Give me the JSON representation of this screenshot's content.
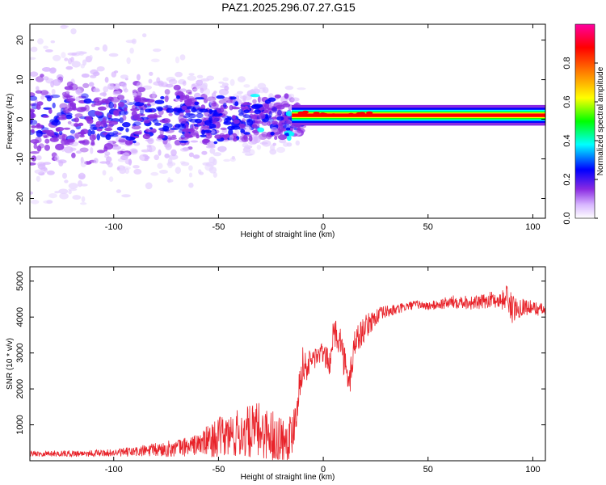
{
  "title": "PAZ1.2025.296.07.27.G15",
  "chart_data": [
    {
      "type": "heatmap",
      "title": "PAZ1.2025.296.07.27.G15",
      "xlabel": "Height of straight line (km)",
      "ylabel": "Frequency (Hz)",
      "xlim": [
        -140,
        106
      ],
      "ylim": [
        -25,
        24
      ],
      "x_ticks": [
        -100,
        -50,
        0,
        50,
        100
      ],
      "y_ticks": [
        -20,
        -10,
        0,
        10,
        20
      ],
      "colorbar": {
        "label": "Normalized spectral amplitude",
        "range": [
          0.0,
          1.0
        ],
        "ticks": [
          0.0,
          0.2,
          0.4,
          0.6,
          0.8
        ],
        "tick_labels": [
          "0.0",
          "0.2",
          "0.4",
          "0.6",
          "0.8"
        ],
        "colors": [
          "#ffffff",
          "#d8b6ff",
          "#8a2be2",
          "#0000ff",
          "#00ffff",
          "#00ff00",
          "#ffff00",
          "#ff8000",
          "#ff0000",
          "#ff00a0"
        ]
      },
      "features": {
        "carrier_frequency_hz": 1.0,
        "carrier_band_start_km": -15,
        "diffuse_region_km": [
          -140,
          -15
        ],
        "diffuse_freq_span_hz": [
          -25,
          24
        ]
      }
    },
    {
      "type": "line",
      "xlabel": "Height of straight line (km)",
      "ylabel": "SNR (10 * v/v)",
      "xlim": [
        -140,
        106
      ],
      "ylim": [
        0,
        5400
      ],
      "x_ticks": [
        -100,
        -50,
        0,
        50,
        100
      ],
      "y_ticks": [
        1000,
        2000,
        3000,
        4000,
        5000
      ],
      "series": [
        {
          "name": "SNR",
          "color": "#e8232a",
          "x": [
            -140,
            -120,
            -100,
            -90,
            -80,
            -70,
            -60,
            -55,
            -50,
            -45,
            -40,
            -35,
            -30,
            -25,
            -20,
            -15,
            -12,
            -10,
            -8,
            -5,
            0,
            3,
            5,
            8,
            10,
            12,
            15,
            20,
            25,
            30,
            35,
            40,
            45,
            50,
            55,
            60,
            65,
            70,
            75,
            80,
            85,
            88,
            90,
            95,
            100,
            105
          ],
          "y": [
            200,
            200,
            220,
            250,
            300,
            350,
            450,
            550,
            650,
            700,
            750,
            800,
            850,
            700,
            600,
            700,
            1800,
            2700,
            2600,
            2850,
            3000,
            2700,
            3600,
            3400,
            2800,
            2000,
            3300,
            3700,
            4000,
            4150,
            4200,
            4300,
            4350,
            4300,
            4350,
            4400,
            4450,
            4400,
            4400,
            4500,
            4450,
            4600,
            4200,
            4300,
            4250,
            4200
          ],
          "noise_amplitude": [
            80,
            90,
            100,
            150,
            200,
            250,
            300,
            450,
            550,
            650,
            700,
            750,
            800,
            750,
            700,
            650,
            600,
            500,
            400,
            350,
            300,
            350,
            400,
            450,
            500,
            600,
            450,
            350,
            250,
            180,
            150,
            130,
            120,
            120,
            150,
            180,
            200,
            200,
            200,
            220,
            250,
            400,
            400,
            250,
            200,
            180
          ]
        }
      ]
    }
  ]
}
